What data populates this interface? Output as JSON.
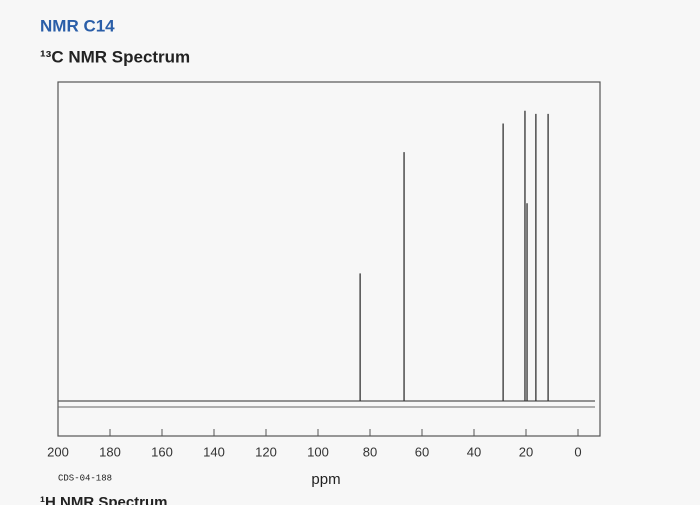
{
  "chart_data": {
    "type": "stick",
    "title": "NMR C14",
    "subtitle": "¹³C NMR Spectrum",
    "x_label": "ppm",
    "code": "CDS-04-188",
    "next_heading": "¹H NMR Spectrum",
    "x": [
      83.8,
      66.9,
      28.8,
      20.4,
      19.6,
      16.2,
      11.5
    ],
    "values": [
      40,
      78,
      87,
      91,
      62,
      90,
      90
    ],
    "color": "#333333",
    "xlim": [
      200,
      0
    ],
    "ylim": [
      0,
      100
    ],
    "xticks": [
      200,
      180,
      160,
      140,
      120,
      100,
      80,
      60,
      40,
      20,
      0
    ]
  }
}
